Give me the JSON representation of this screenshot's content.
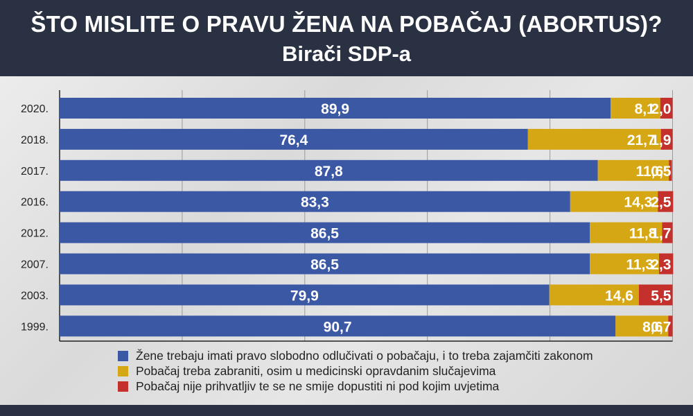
{
  "header": {
    "title": "ŠTO MISLITE O PRAVU ŽENA NA POBAČAJ (ABORTUS)?",
    "subtitle": "Birači SDP-a"
  },
  "chart_data": {
    "type": "bar",
    "orientation": "horizontal",
    "stacked": true,
    "xlim": [
      0,
      100
    ],
    "grid": true,
    "legend_position": "bottom",
    "categories": [
      "2020.",
      "2018.",
      "2017.",
      "2016.",
      "2012.",
      "2007.",
      "2003.",
      "1999."
    ],
    "series": [
      {
        "name": "Žene trebaju imati pravo slobodno odlučivati o pobačaju, i to treba zajamčiti zakonom",
        "color": "#3a58a4",
        "values": [
          89.9,
          76.4,
          87.8,
          83.3,
          86.5,
          86.5,
          79.9,
          90.7
        ],
        "labels": [
          "89,9",
          "76,4",
          "87,8",
          "83,3",
          "86,5",
          "86,5",
          "79,9",
          "90,7"
        ]
      },
      {
        "name": "Pobačaj treba zabraniti, osim u medicinski opravdanim slučajevima",
        "color": "#d6a714",
        "values": [
          8.1,
          21.7,
          11.6,
          14.3,
          11.8,
          11.3,
          14.6,
          8.6
        ],
        "labels": [
          "8,1",
          "21,7",
          "11,6",
          "14,3",
          "11,8",
          "11,3",
          "14,6",
          "8,6"
        ]
      },
      {
        "name": "Pobačaj nije prihvatljiv te se ne smije dopustiti ni pod kojim uvjetima",
        "color": "#c4302b",
        "values": [
          2.0,
          1.9,
          0.5,
          2.5,
          1.7,
          2.3,
          5.5,
          0.7
        ],
        "labels": [
          "2,0",
          "1,9",
          "0,5",
          "2,5",
          "1,7",
          "2,3",
          "5,5",
          "0,7"
        ]
      }
    ]
  }
}
